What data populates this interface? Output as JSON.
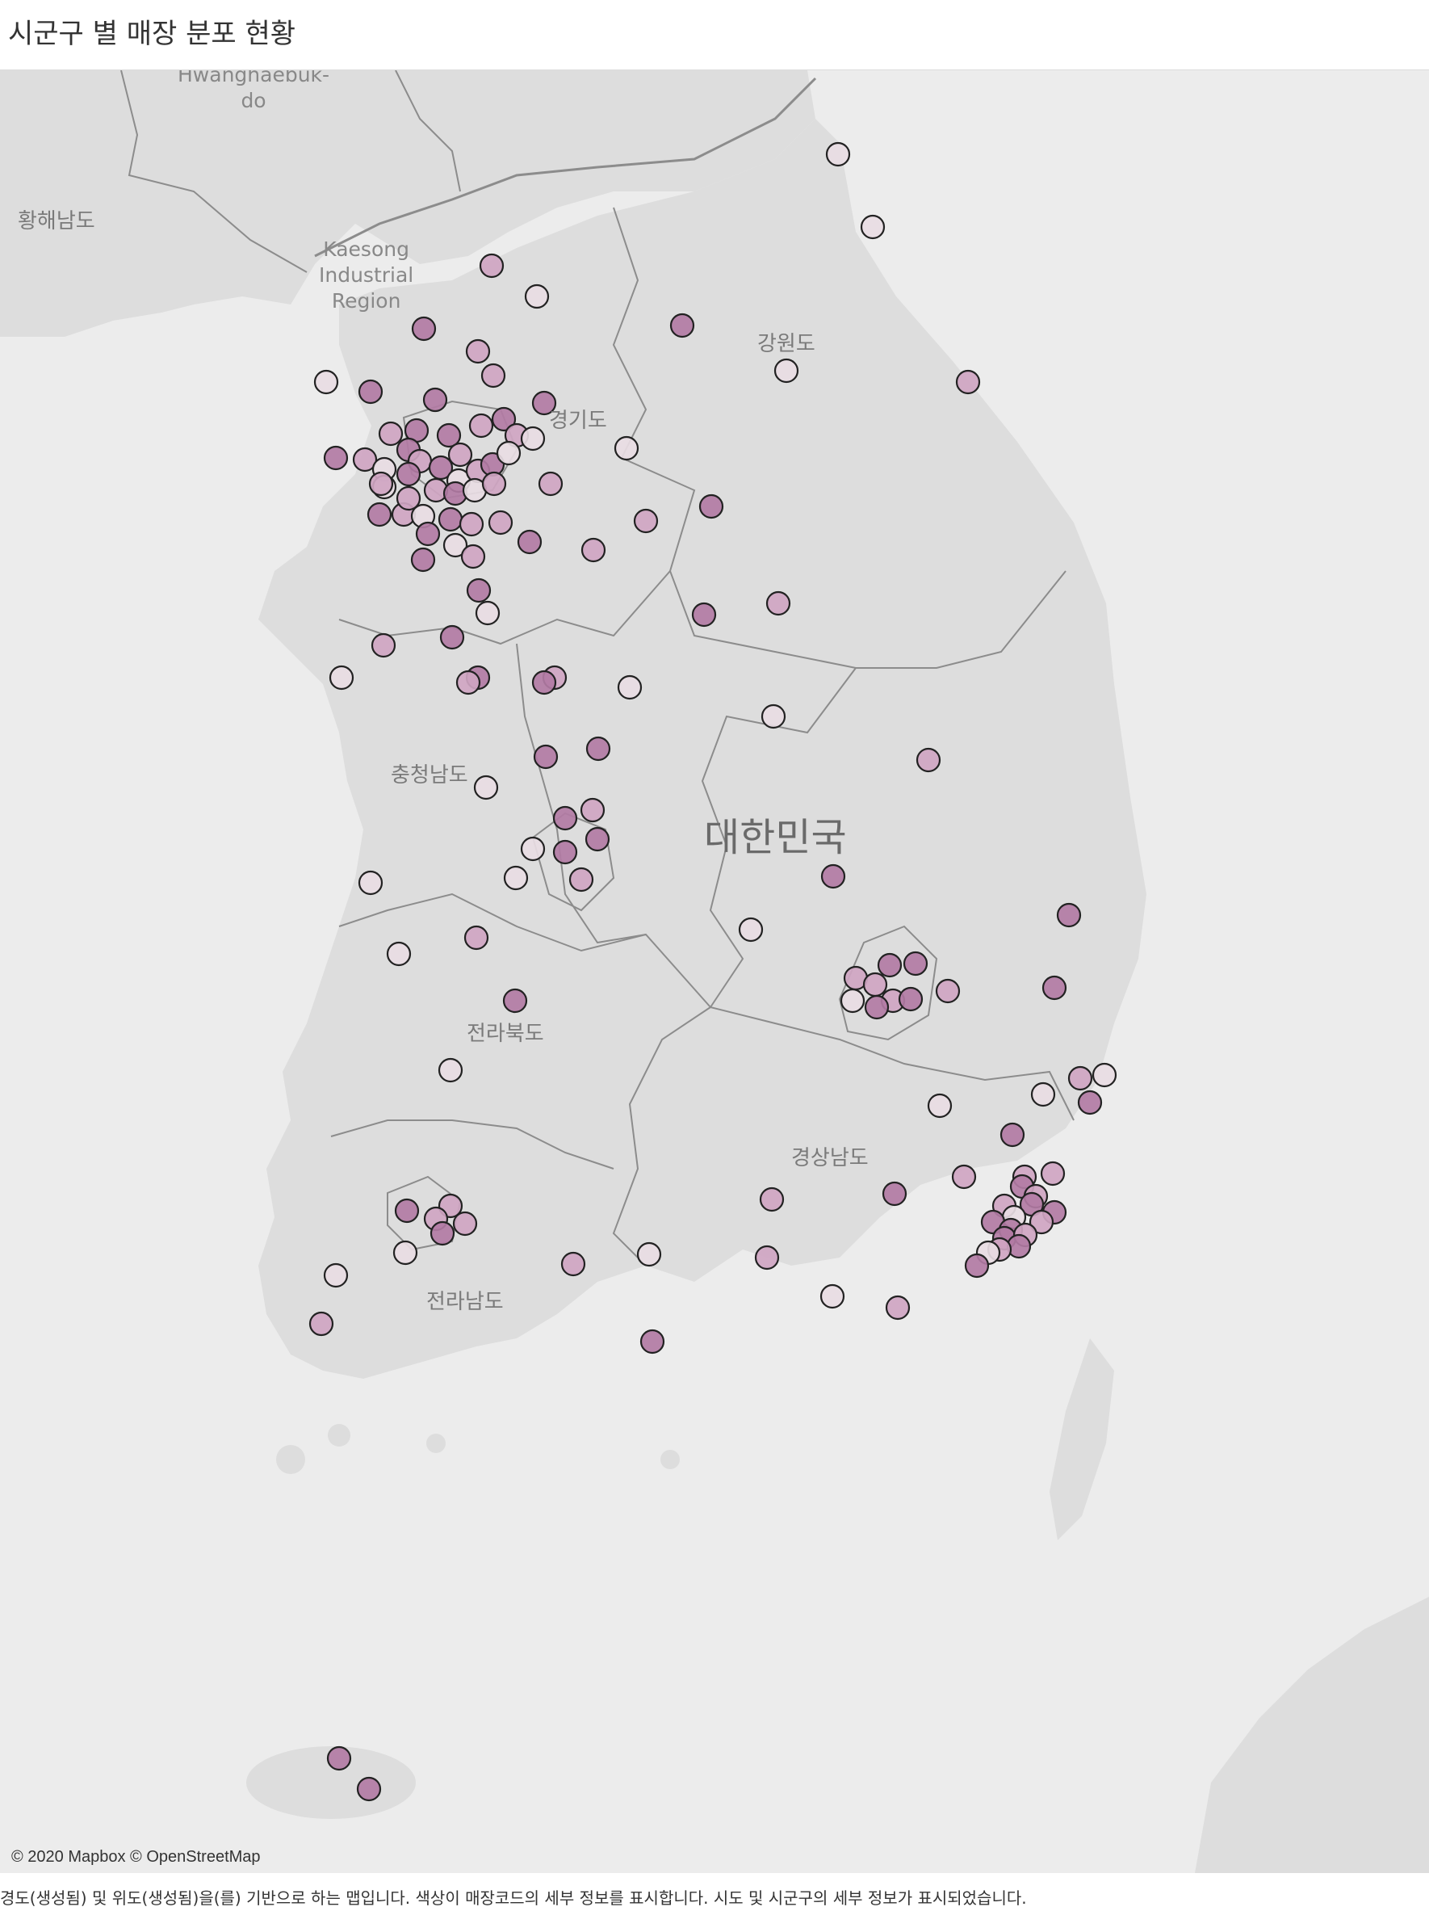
{
  "title": "시군구 별 매장 분포 현황",
  "map": {
    "labels": {
      "hwanghaebuk_1": "Hwanghaebuk-",
      "hwanghaebuk_2": "do",
      "hwanghaenam": "황해남도",
      "kaesong_1": "Kaesong",
      "kaesong_2": "Industrial",
      "kaesong_3": "Region",
      "gangwon": "강원도",
      "gyeonggi": "경기도",
      "chungnam": "충청남도",
      "country": "대한민국",
      "jeonbuk": "전라북도",
      "gyeongnam": "경상남도",
      "jeonnam": "전라남도"
    },
    "attribution": "© 2020 Mapbox © OpenStreetMap",
    "colors": {
      "land": "#dddddd",
      "sea": "#ececec",
      "border": "#8c8c8c",
      "marker_stroke": "#222222",
      "marker_light": "#e8dce3",
      "marker_mid": "#cfa5c2",
      "marker_dark": "#b27ba4"
    }
  },
  "caption": "경도(생성됨) 및 위도(생성됨)을(를) 기반으로 하는 맵입니다.  색상이 매장코드의 세부 정보를 표시합니다.  시도 및 시군구의 세부 정보가 표시되었습니다."
}
